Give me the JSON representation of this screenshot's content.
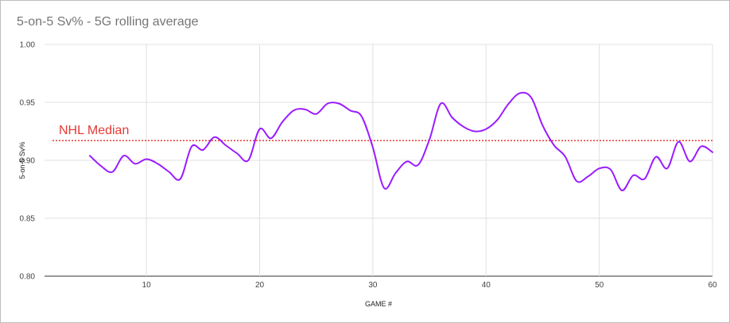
{
  "chart_data": {
    "type": "line",
    "title": "5-on-5 Sv% - 5G rolling average",
    "xlabel": "GAME #",
    "ylabel": "5-on-5 Sv%",
    "xlim": [
      1,
      60
    ],
    "ylim": [
      0.8,
      1.0
    ],
    "x_ticks": [
      10,
      20,
      30,
      40,
      50,
      60
    ],
    "y_ticks": [
      "0.80",
      "0.85",
      "0.90",
      "0.95",
      "1.00"
    ],
    "grid": true,
    "series": [
      {
        "name": "",
        "color": "#9b1cff",
        "x": [
          5,
          6,
          7,
          8,
          9,
          10,
          11,
          12,
          13,
          14,
          15,
          16,
          17,
          18,
          19,
          20,
          21,
          22,
          23,
          24,
          25,
          26,
          27,
          28,
          29,
          30,
          31,
          32,
          33,
          34,
          35,
          36,
          37,
          38,
          39,
          40,
          41,
          42,
          43,
          44,
          45,
          46,
          47,
          48,
          49,
          50,
          51,
          52,
          53,
          54,
          55,
          56,
          57,
          58,
          59,
          60
        ],
        "y": [
          0.904,
          0.895,
          0.89,
          0.904,
          0.897,
          0.901,
          0.897,
          0.89,
          0.884,
          0.912,
          0.909,
          0.92,
          0.913,
          0.906,
          0.9,
          0.927,
          0.919,
          0.933,
          0.943,
          0.944,
          0.94,
          0.949,
          0.949,
          0.943,
          0.938,
          0.911,
          0.876,
          0.889,
          0.899,
          0.896,
          0.918,
          0.949,
          0.937,
          0.929,
          0.925,
          0.927,
          0.935,
          0.949,
          0.958,
          0.954,
          0.93,
          0.913,
          0.903,
          0.882,
          0.886,
          0.893,
          0.892,
          0.874,
          0.887,
          0.884,
          0.903,
          0.893,
          0.916,
          0.899,
          0.912,
          0.907
        ]
      }
    ],
    "reference_lines": [
      {
        "label": "NHL Median",
        "value": 0.917,
        "color": "#e53935",
        "style": "dotted"
      }
    ]
  }
}
